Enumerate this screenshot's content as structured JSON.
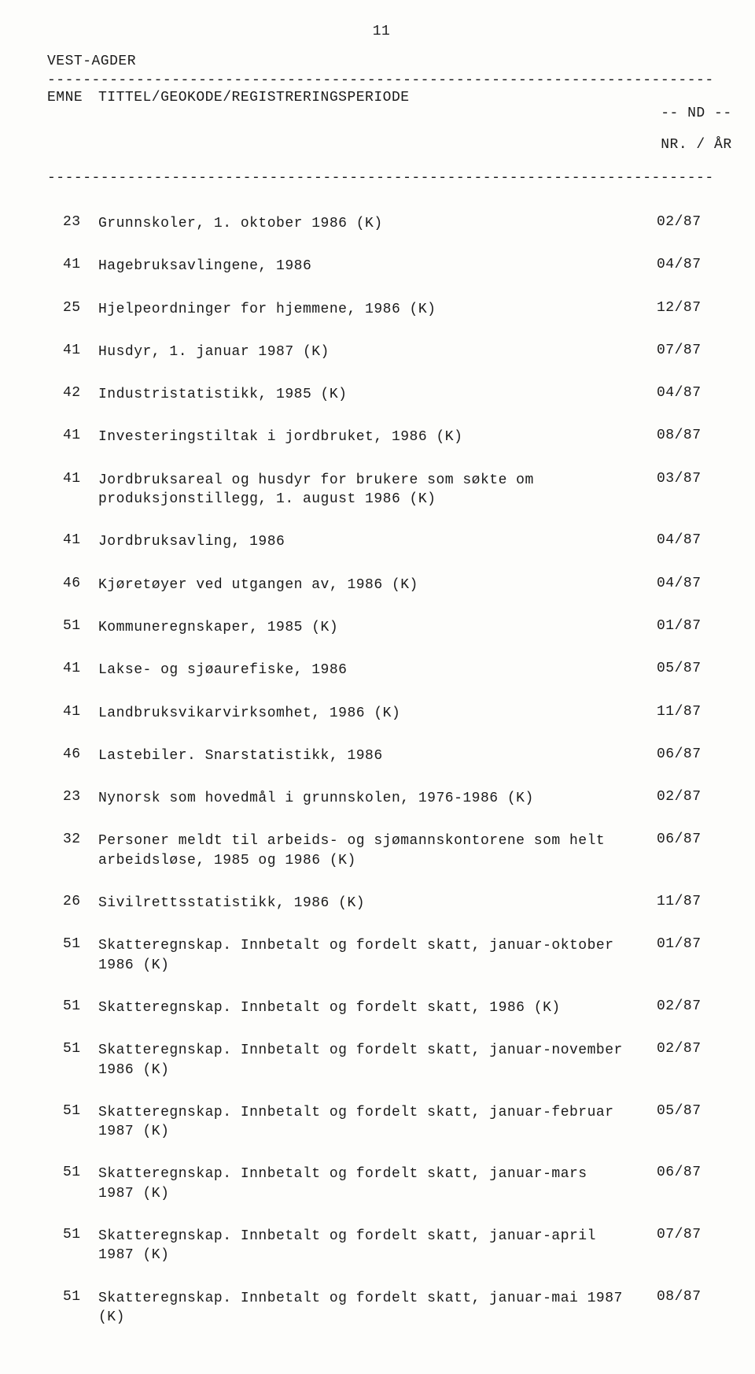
{
  "page_number": "11",
  "region": "VEST-AGDER",
  "dashed_line": "----------------------------------------------------------------------------------",
  "headers": {
    "emne": "EMNE",
    "title": "TITTEL/GEOKODE/REGISTRERINGSPERIODE",
    "nd_line1": "-- ND --",
    "nd_line2": "NR. / ÅR"
  },
  "entries": [
    {
      "emne": "23",
      "title": "Grunnskoler, 1. oktober 1986 (K)",
      "nd": "02/87"
    },
    {
      "emne": "41",
      "title": "Hagebruksavlingene, 1986",
      "nd": "04/87"
    },
    {
      "emne": "25",
      "title": "Hjelpeordninger for hjemmene, 1986 (K)",
      "nd": "12/87"
    },
    {
      "emne": "41",
      "title": "Husdyr, 1. januar 1987 (K)",
      "nd": "07/87"
    },
    {
      "emne": "42",
      "title": "Industristatistikk, 1985 (K)",
      "nd": "04/87"
    },
    {
      "emne": "41",
      "title": "Investeringstiltak i jordbruket, 1986 (K)",
      "nd": "08/87"
    },
    {
      "emne": "41",
      "title": "Jordbruksareal og husdyr for brukere som søkte om produksjonstillegg, 1. august 1986 (K)",
      "nd": "03/87"
    },
    {
      "emne": "41",
      "title": "Jordbruksavling, 1986",
      "nd": "04/87"
    },
    {
      "emne": "46",
      "title": "Kjøretøyer ved utgangen av, 1986 (K)",
      "nd": "04/87"
    },
    {
      "emne": "51",
      "title": "Kommuneregnskaper, 1985 (K)",
      "nd": "01/87"
    },
    {
      "emne": "41",
      "title": "Lakse- og sjøaurefiske, 1986",
      "nd": "05/87"
    },
    {
      "emne": "41",
      "title": "Landbruksvikarvirksomhet, 1986 (K)",
      "nd": "11/87"
    },
    {
      "emne": "46",
      "title": "Lastebiler. Snarstatistikk, 1986",
      "nd": "06/87"
    },
    {
      "emne": "23",
      "title": "Nynorsk som hovedmål i grunnskolen, 1976-1986 (K)",
      "nd": "02/87"
    },
    {
      "emne": "32",
      "title": "Personer meldt til arbeids- og sjømannskontorene som helt arbeidsløse, 1985 og 1986 (K)",
      "nd": "06/87"
    },
    {
      "emne": "26",
      "title": "Sivilrettsstatistikk, 1986 (K)",
      "nd": "11/87"
    },
    {
      "emne": "51",
      "title": "Skatteregnskap. Innbetalt og fordelt skatt, januar-oktober 1986 (K)",
      "nd": "01/87"
    },
    {
      "emne": "51",
      "title": "Skatteregnskap. Innbetalt og fordelt skatt, 1986 (K)",
      "nd": "02/87"
    },
    {
      "emne": "51",
      "title": "Skatteregnskap. Innbetalt og fordelt skatt, januar-november 1986 (K)",
      "nd": "02/87"
    },
    {
      "emne": "51",
      "title": "Skatteregnskap. Innbetalt og fordelt skatt, januar-februar 1987 (K)",
      "nd": "05/87"
    },
    {
      "emne": "51",
      "title": "Skatteregnskap. Innbetalt og fordelt skatt, januar-mars 1987 (K)",
      "nd": "06/87"
    },
    {
      "emne": "51",
      "title": "Skatteregnskap. Innbetalt og fordelt skatt, januar-april 1987 (K)",
      "nd": "07/87"
    },
    {
      "emne": "51",
      "title": "Skatteregnskap. Innbetalt og fordelt skatt, januar-mai 1987 (K)",
      "nd": "08/87"
    }
  ]
}
